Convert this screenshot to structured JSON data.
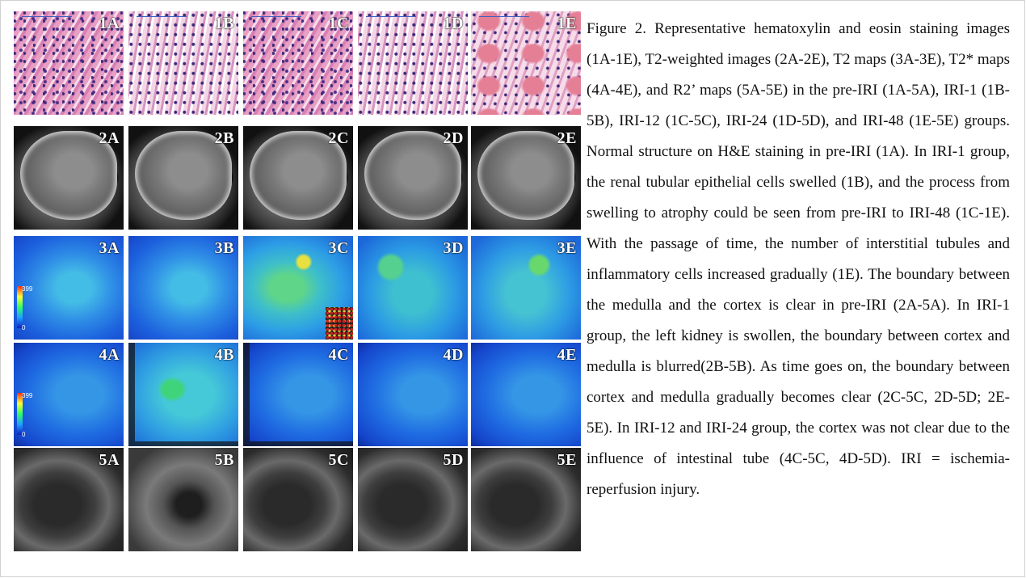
{
  "panels": {
    "row1": [
      "1A",
      "1B",
      "1C",
      "1D",
      "1E"
    ],
    "row2": [
      "2A",
      "2B",
      "2C",
      "2D",
      "2E"
    ],
    "row3": [
      "3A",
      "3B",
      "3C",
      "3D",
      "3E"
    ],
    "row4": [
      "4A",
      "4B",
      "4C",
      "4D",
      "4E"
    ],
    "row5": [
      "5A",
      "5B",
      "5C",
      "5D",
      "5E"
    ]
  },
  "colorbar": {
    "max": "399",
    "min": "0"
  },
  "caption": "Figure 2. Representative hematoxylin and eosin staining images (1A-1E), T2-weighted images (2A-2E), T2 maps (3A-3E), T2* maps (4A-4E), and R2’ maps (5A-5E) in the pre-IRI (1A-5A), IRI-1 (1B-5B), IRI-12 (1C-5C), IRI-24 (1D-5D), and IRI-48 (1E-5E) groups. Normal structure on H&E staining in pre-IRI (1A). In IRI-1 group, the renal tubular epithelial cells swelled (1B), and the process from swelling to atrophy could be seen from pre-IRI to IRI-48 (1C-1E). With the passage of time, the number of interstitial tubules and inflammatory cells increased gradually (1E). The boundary between the medulla and the cortex is clear in pre-IRI (2A-5A). In IRI-1 group, the left kidney is swollen, the boundary between cortex and medulla is blurred(2B-5B). As time goes on, the boundary between cortex and medulla gradually becomes clear (2C-5C, 2D-5D; 2E-5E). In IRI-12 and IRI-24 group, the cortex was not clear due to the influence of intestinal tube (4C-5C, 4D-5D). IRI = ischemia-reperfusion injury."
}
